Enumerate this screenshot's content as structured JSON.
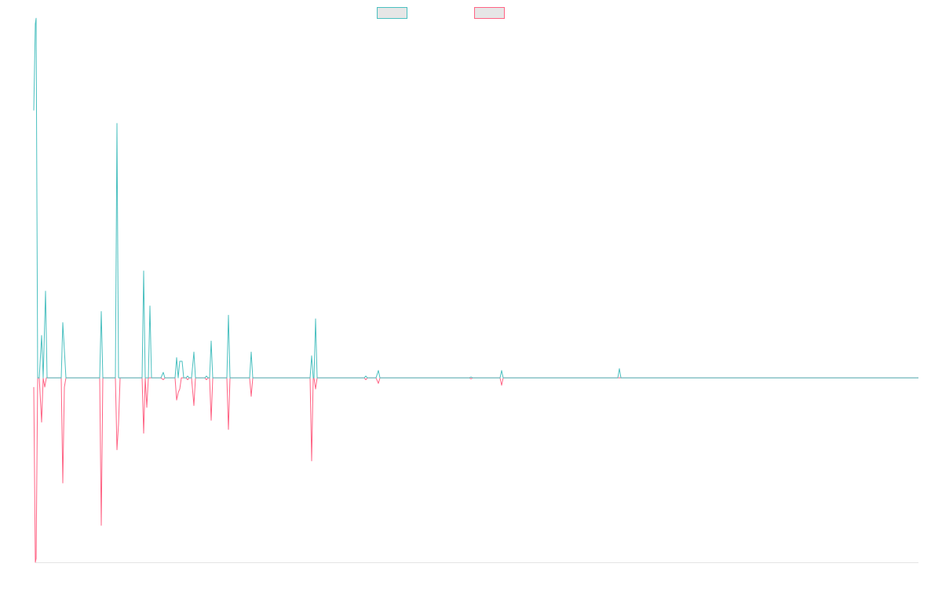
{
  "chart_data": {
    "type": "line",
    "title": "",
    "xlabel": "",
    "ylabel": "",
    "xlim": [
      0,
      1125
    ],
    "ylim": [
      -1.0,
      1.9
    ],
    "grid": false,
    "legend_placement": "top-center",
    "series": [
      {
        "color": "#4bc0c0",
        "points": [
          [
            -2,
            1.45
          ],
          [
            0,
            1.92
          ],
          [
            1,
            1.95
          ],
          [
            3,
            0.0
          ],
          [
            5,
            0.0
          ],
          [
            8,
            0.23
          ],
          [
            10,
            0.0
          ],
          [
            13,
            0.47
          ],
          [
            15,
            0.0
          ],
          [
            33,
            0.0
          ],
          [
            35,
            0.3
          ],
          [
            37,
            0.15
          ],
          [
            39,
            0.0
          ],
          [
            82,
            0.0
          ],
          [
            84,
            0.36
          ],
          [
            86,
            0.0
          ],
          [
            102,
            0.0
          ],
          [
            104,
            1.38
          ],
          [
            106,
            0.0
          ],
          [
            136,
            0.0
          ],
          [
            138,
            0.58
          ],
          [
            140,
            0.0
          ],
          [
            144,
            0.0
          ],
          [
            146,
            0.39
          ],
          [
            148,
            0.0
          ],
          [
            160,
            0.0
          ],
          [
            163,
            0.03
          ],
          [
            165,
            0.0
          ],
          [
            178,
            0.0
          ],
          [
            180,
            0.11
          ],
          [
            182,
            0.0
          ],
          [
            184,
            0.09
          ],
          [
            187,
            0.09
          ],
          [
            189,
            0.0
          ],
          [
            192,
            0.0
          ],
          [
            194,
            0.01
          ],
          [
            196,
            0.0
          ],
          [
            199,
            0.0
          ],
          [
            202,
            0.14
          ],
          [
            204,
            0.0
          ],
          [
            216,
            0.0
          ],
          [
            218,
            0.01
          ],
          [
            220,
            0.0
          ],
          [
            222,
            0.0
          ],
          [
            224,
            0.2
          ],
          [
            226,
            0.0
          ],
          [
            244,
            0.0
          ],
          [
            246,
            0.34
          ],
          [
            248,
            0.0
          ],
          [
            273,
            0.0
          ],
          [
            275,
            0.14
          ],
          [
            277,
            0.0
          ],
          [
            350,
            0.0
          ],
          [
            352,
            0.12
          ],
          [
            354,
            0.0
          ],
          [
            355,
            0.0
          ],
          [
            357,
            0.32
          ],
          [
            359,
            0.0
          ],
          [
            419,
            0.0
          ],
          [
            421,
            0.01
          ],
          [
            423,
            0.0
          ],
          [
            434,
            0.0
          ],
          [
            437,
            0.04
          ],
          [
            439,
            0.0
          ],
          [
            553,
            0.0
          ],
          [
            555,
            0.005
          ],
          [
            557,
            0.0
          ],
          [
            592,
            0.0
          ],
          [
            594,
            0.04
          ],
          [
            596,
            0.0
          ],
          [
            742,
            0.0
          ],
          [
            744,
            0.05
          ],
          [
            746,
            0.0
          ],
          [
            1125,
            0.0
          ]
        ]
      },
      {
        "color": "#ff6384",
        "points": [
          [
            -2,
            -0.05
          ],
          [
            0,
            -1.0
          ],
          [
            1,
            -0.98
          ],
          [
            3,
            0.0
          ],
          [
            5,
            0.0
          ],
          [
            8,
            -0.24
          ],
          [
            10,
            0.0
          ],
          [
            12,
            -0.05
          ],
          [
            14,
            0.0
          ],
          [
            33,
            0.0
          ],
          [
            35,
            -0.57
          ],
          [
            37,
            -0.05
          ],
          [
            39,
            0.0
          ],
          [
            82,
            0.0
          ],
          [
            84,
            -0.8
          ],
          [
            86,
            0.0
          ],
          [
            102,
            0.0
          ],
          [
            104,
            -0.39
          ],
          [
            106,
            -0.25
          ],
          [
            108,
            0.0
          ],
          [
            136,
            0.0
          ],
          [
            138,
            -0.3
          ],
          [
            140,
            0.0
          ],
          [
            142,
            -0.16
          ],
          [
            144,
            0.0
          ],
          [
            160,
            0.0
          ],
          [
            163,
            -0.01
          ],
          [
            165,
            0.0
          ],
          [
            178,
            0.0
          ],
          [
            180,
            -0.12
          ],
          [
            182,
            -0.08
          ],
          [
            184,
            -0.06
          ],
          [
            186,
            0.0
          ],
          [
            192,
            0.0
          ],
          [
            194,
            -0.01
          ],
          [
            196,
            0.0
          ],
          [
            199,
            0.0
          ],
          [
            202,
            -0.15
          ],
          [
            204,
            0.0
          ],
          [
            216,
            0.0
          ],
          [
            218,
            -0.01
          ],
          [
            220,
            0.0
          ],
          [
            222,
            0.0
          ],
          [
            224,
            -0.23
          ],
          [
            226,
            0.0
          ],
          [
            244,
            0.0
          ],
          [
            246,
            -0.28
          ],
          [
            248,
            0.0
          ],
          [
            273,
            0.0
          ],
          [
            275,
            -0.1
          ],
          [
            277,
            0.0
          ],
          [
            350,
            0.0
          ],
          [
            352,
            -0.45
          ],
          [
            354,
            0.0
          ],
          [
            355,
            0.0
          ],
          [
            357,
            -0.06
          ],
          [
            359,
            0.0
          ],
          [
            419,
            0.0
          ],
          [
            421,
            -0.01
          ],
          [
            423,
            0.0
          ],
          [
            434,
            0.0
          ],
          [
            437,
            -0.03
          ],
          [
            439,
            0.0
          ],
          [
            553,
            0.0
          ],
          [
            555,
            -0.005
          ],
          [
            557,
            0.0
          ],
          [
            592,
            0.0
          ],
          [
            594,
            -0.04
          ],
          [
            596,
            0.0
          ],
          [
            1125,
            0.0
          ]
        ]
      }
    ]
  }
}
